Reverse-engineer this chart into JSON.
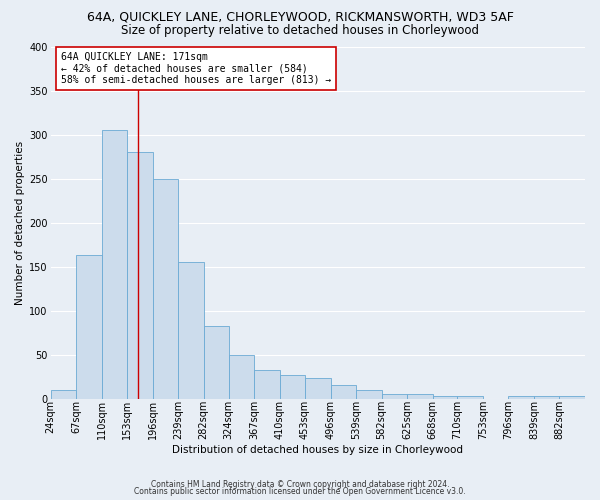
{
  "title": "64A, QUICKLEY LANE, CHORLEYWOOD, RICKMANSWORTH, WD3 5AF",
  "subtitle": "Size of property relative to detached houses in Chorleywood",
  "xlabel": "Distribution of detached houses by size in Chorleywood",
  "ylabel": "Number of detached properties",
  "bin_labels": [
    "24sqm",
    "67sqm",
    "110sqm",
    "153sqm",
    "196sqm",
    "239sqm",
    "282sqm",
    "324sqm",
    "367sqm",
    "410sqm",
    "453sqm",
    "496sqm",
    "539sqm",
    "582sqm",
    "625sqm",
    "668sqm",
    "710sqm",
    "753sqm",
    "796sqm",
    "839sqm",
    "882sqm"
  ],
  "bar_heights": [
    10,
    163,
    305,
    280,
    250,
    155,
    83,
    50,
    33,
    27,
    24,
    15,
    10,
    5,
    5,
    3,
    3,
    0,
    3,
    3,
    3
  ],
  "bin_edges": [
    24,
    67,
    110,
    153,
    196,
    239,
    282,
    324,
    367,
    410,
    453,
    496,
    539,
    582,
    625,
    668,
    710,
    753,
    796,
    839,
    882,
    925
  ],
  "bar_color": "#ccdcec",
  "bar_edge_color": "#6aaad4",
  "vline_x": 171,
  "vline_color": "#cc0000",
  "ylim": [
    0,
    400
  ],
  "yticks": [
    0,
    50,
    100,
    150,
    200,
    250,
    300,
    350,
    400
  ],
  "annotation_line1": "64A QUICKLEY LANE: 171sqm",
  "annotation_line2": "← 42% of detached houses are smaller (584)",
  "annotation_line3": "58% of semi-detached houses are larger (813) →",
  "annotation_box_facecolor": "#ffffff",
  "annotation_box_edgecolor": "#cc0000",
  "footer1": "Contains HM Land Registry data © Crown copyright and database right 2024.",
  "footer2": "Contains public sector information licensed under the Open Government Licence v3.0.",
  "bg_color": "#e8eef5",
  "grid_color": "#ffffff",
  "title_fontsize": 9,
  "subtitle_fontsize": 8.5,
  "axis_label_fontsize": 7.5,
  "tick_fontsize": 7,
  "footer_fontsize": 5.5
}
